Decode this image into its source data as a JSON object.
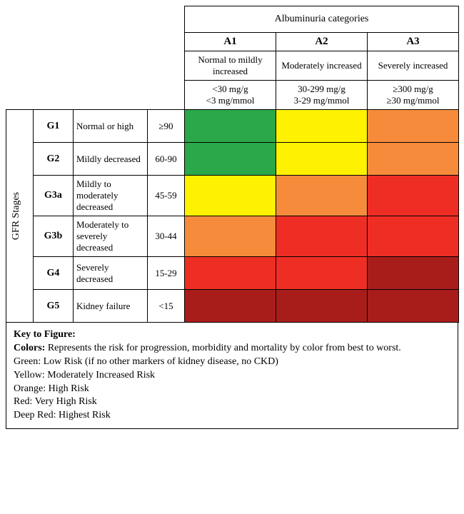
{
  "colors": {
    "green": "#2aa84a",
    "yellow": "#fff200",
    "orange": "#f68b3c",
    "red": "#ee2e24",
    "deepred": "#a81d1a",
    "border": "#000000",
    "bg": "#ffffff"
  },
  "header": {
    "superheader": "Albuminuria categories",
    "a1": "A1",
    "a2": "A2",
    "a3": "A3",
    "a1_desc": "Normal to mildly increased",
    "a2_desc": "Moderately increased",
    "a3_desc": "Severely increased",
    "a1_range": "<30 mg/g\n<3 mg/mmol",
    "a2_range": "30-299 mg/g\n3-29 mg/mmol",
    "a3_range": "≥300 mg/g\n≥30 mg/mmol"
  },
  "side_label": "GFR Stages",
  "rows": [
    {
      "stage": "G1",
      "desc": "Normal or high",
      "range": "≥90",
      "cells": [
        "green",
        "yellow",
        "orange"
      ]
    },
    {
      "stage": "G2",
      "desc": "Mildly decreased",
      "range": "60-90",
      "cells": [
        "green",
        "yellow",
        "orange"
      ]
    },
    {
      "stage": "G3a",
      "desc": "Mildly to moderately decreased",
      "range": "45-59",
      "cells": [
        "yellow",
        "orange",
        "red"
      ]
    },
    {
      "stage": "G3b",
      "desc": "Moderately to severely decreased",
      "range": "30-44",
      "cells": [
        "orange",
        "red",
        "red"
      ]
    },
    {
      "stage": "G4",
      "desc": "Severely decreased",
      "range": "15-29",
      "cells": [
        "red",
        "red",
        "deepred"
      ]
    },
    {
      "stage": "G5",
      "desc": "Kidney failure",
      "range": "<15",
      "cells": [
        "deepred",
        "deepred",
        "deepred"
      ]
    }
  ],
  "col_widths": {
    "side": 38,
    "stage": 56,
    "desc": 104,
    "range": 52,
    "heat": 128
  },
  "key": {
    "title": "Key to Figure:",
    "colors_label": "Colors:",
    "colors_text": " Represents the risk for progression, morbidity and mortality by color from best to worst.",
    "lines": [
      "Green:  Low Risk (if no other markers of kidney disease, no CKD)",
      "Yellow:  Moderately Increased Risk",
      "Orange:  High Risk",
      "Red:  Very High Risk",
      "Deep Red:  Highest Risk"
    ]
  }
}
